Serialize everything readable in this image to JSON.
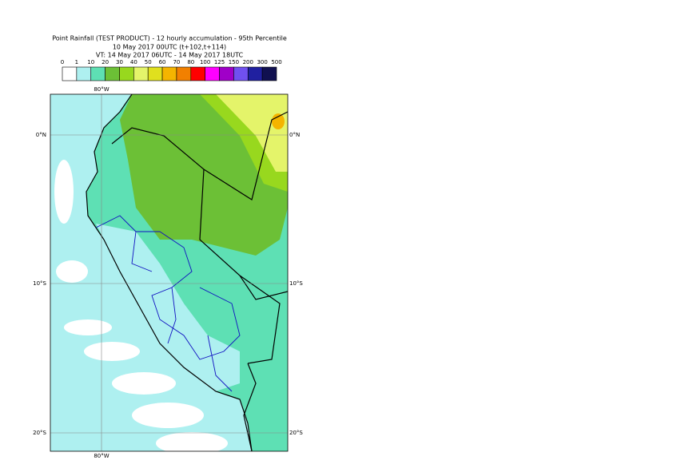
{
  "title": {
    "lines": [
      "Point Rainfall (TEST PRODUCT) - 12 hourly accumulation - 95th Percentile",
      "10 May 2017 00UTC (t+102,t+114)",
      "VT: 14 May 2017 06UTC - 14 May 2017 18UTC"
    ]
  },
  "legend": {
    "labels": [
      "0",
      "1",
      "10",
      "20",
      "30",
      "40",
      "50",
      "60",
      "70",
      "80",
      "100",
      "125",
      "150",
      "200",
      "300",
      "500"
    ],
    "colors": [
      "#ffffff",
      "#aef0f0",
      "#5ee0b4",
      "#6cc036",
      "#98d81e",
      "#e4f46a",
      "#e0e01e",
      "#f4b400",
      "#f28000",
      "#ff0000",
      "#ff00ff",
      "#a000c8",
      "#7050f0",
      "#2020a0",
      "#101050"
    ]
  },
  "map": {
    "lon_label": "80°W",
    "lat_labels": [
      "0°N",
      "10°S",
      "20°S"
    ]
  }
}
